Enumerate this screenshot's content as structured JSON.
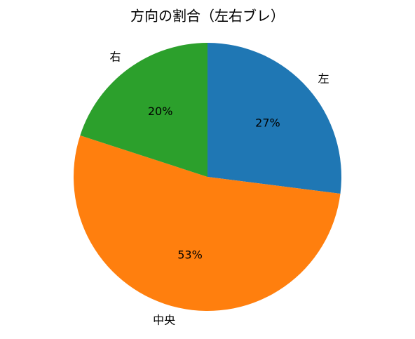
{
  "chart_data": {
    "type": "pie",
    "title": "方向の割合（左右ブレ）",
    "categories": [
      "左",
      "中央",
      "右"
    ],
    "values": [
      27,
      53,
      20
    ],
    "value_labels": [
      "27%",
      "53%",
      "20%"
    ],
    "colors": [
      "#1f77b4",
      "#ff7f0e",
      "#2ca02c"
    ]
  }
}
